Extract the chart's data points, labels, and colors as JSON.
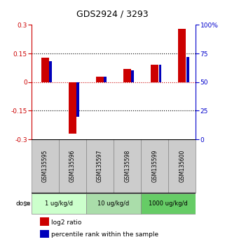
{
  "title": "GDS2924 / 3293",
  "samples": [
    "GSM135595",
    "GSM135596",
    "GSM135597",
    "GSM135598",
    "GSM135599",
    "GSM135600"
  ],
  "log2_ratio": [
    0.13,
    -0.27,
    0.03,
    0.07,
    0.09,
    0.28
  ],
  "percentile_rank": [
    68,
    20,
    55,
    60,
    65,
    72
  ],
  "ylim_left": [
    -0.3,
    0.3
  ],
  "ylim_right": [
    0,
    100
  ],
  "yticks_left": [
    -0.3,
    -0.15,
    0.0,
    0.15,
    0.3
  ],
  "ytick_labels_left": [
    "-0.3",
    "-0.15",
    "0",
    "0.15",
    "0.3"
  ],
  "yticks_right": [
    0,
    25,
    50,
    75,
    100
  ],
  "ytick_labels_right": [
    "0",
    "25",
    "50",
    "75",
    "100%"
  ],
  "left_axis_color": "#cc0000",
  "right_axis_color": "#0000cc",
  "red_bar_color": "#cc0000",
  "blue_bar_color": "#0000bb",
  "red_bar_width": 0.28,
  "blue_bar_width": 0.1,
  "dose_groups": [
    {
      "label": "1 ug/kg/d",
      "samples": [
        0,
        1
      ],
      "color": "#ccffcc"
    },
    {
      "label": "10 ug/kg/d",
      "samples": [
        2,
        3
      ],
      "color": "#aaddaa"
    },
    {
      "label": "1000 ug/kg/d",
      "samples": [
        4,
        5
      ],
      "color": "#66cc66"
    }
  ],
  "dose_label": "dose",
  "legend_red": "log2 ratio",
  "legend_blue": "percentile rank within the sample",
  "bg_color": "#ffffff",
  "sample_box_color": "#cccccc",
  "hline_color_red": "#cc0000",
  "dotline_color": "#000000"
}
